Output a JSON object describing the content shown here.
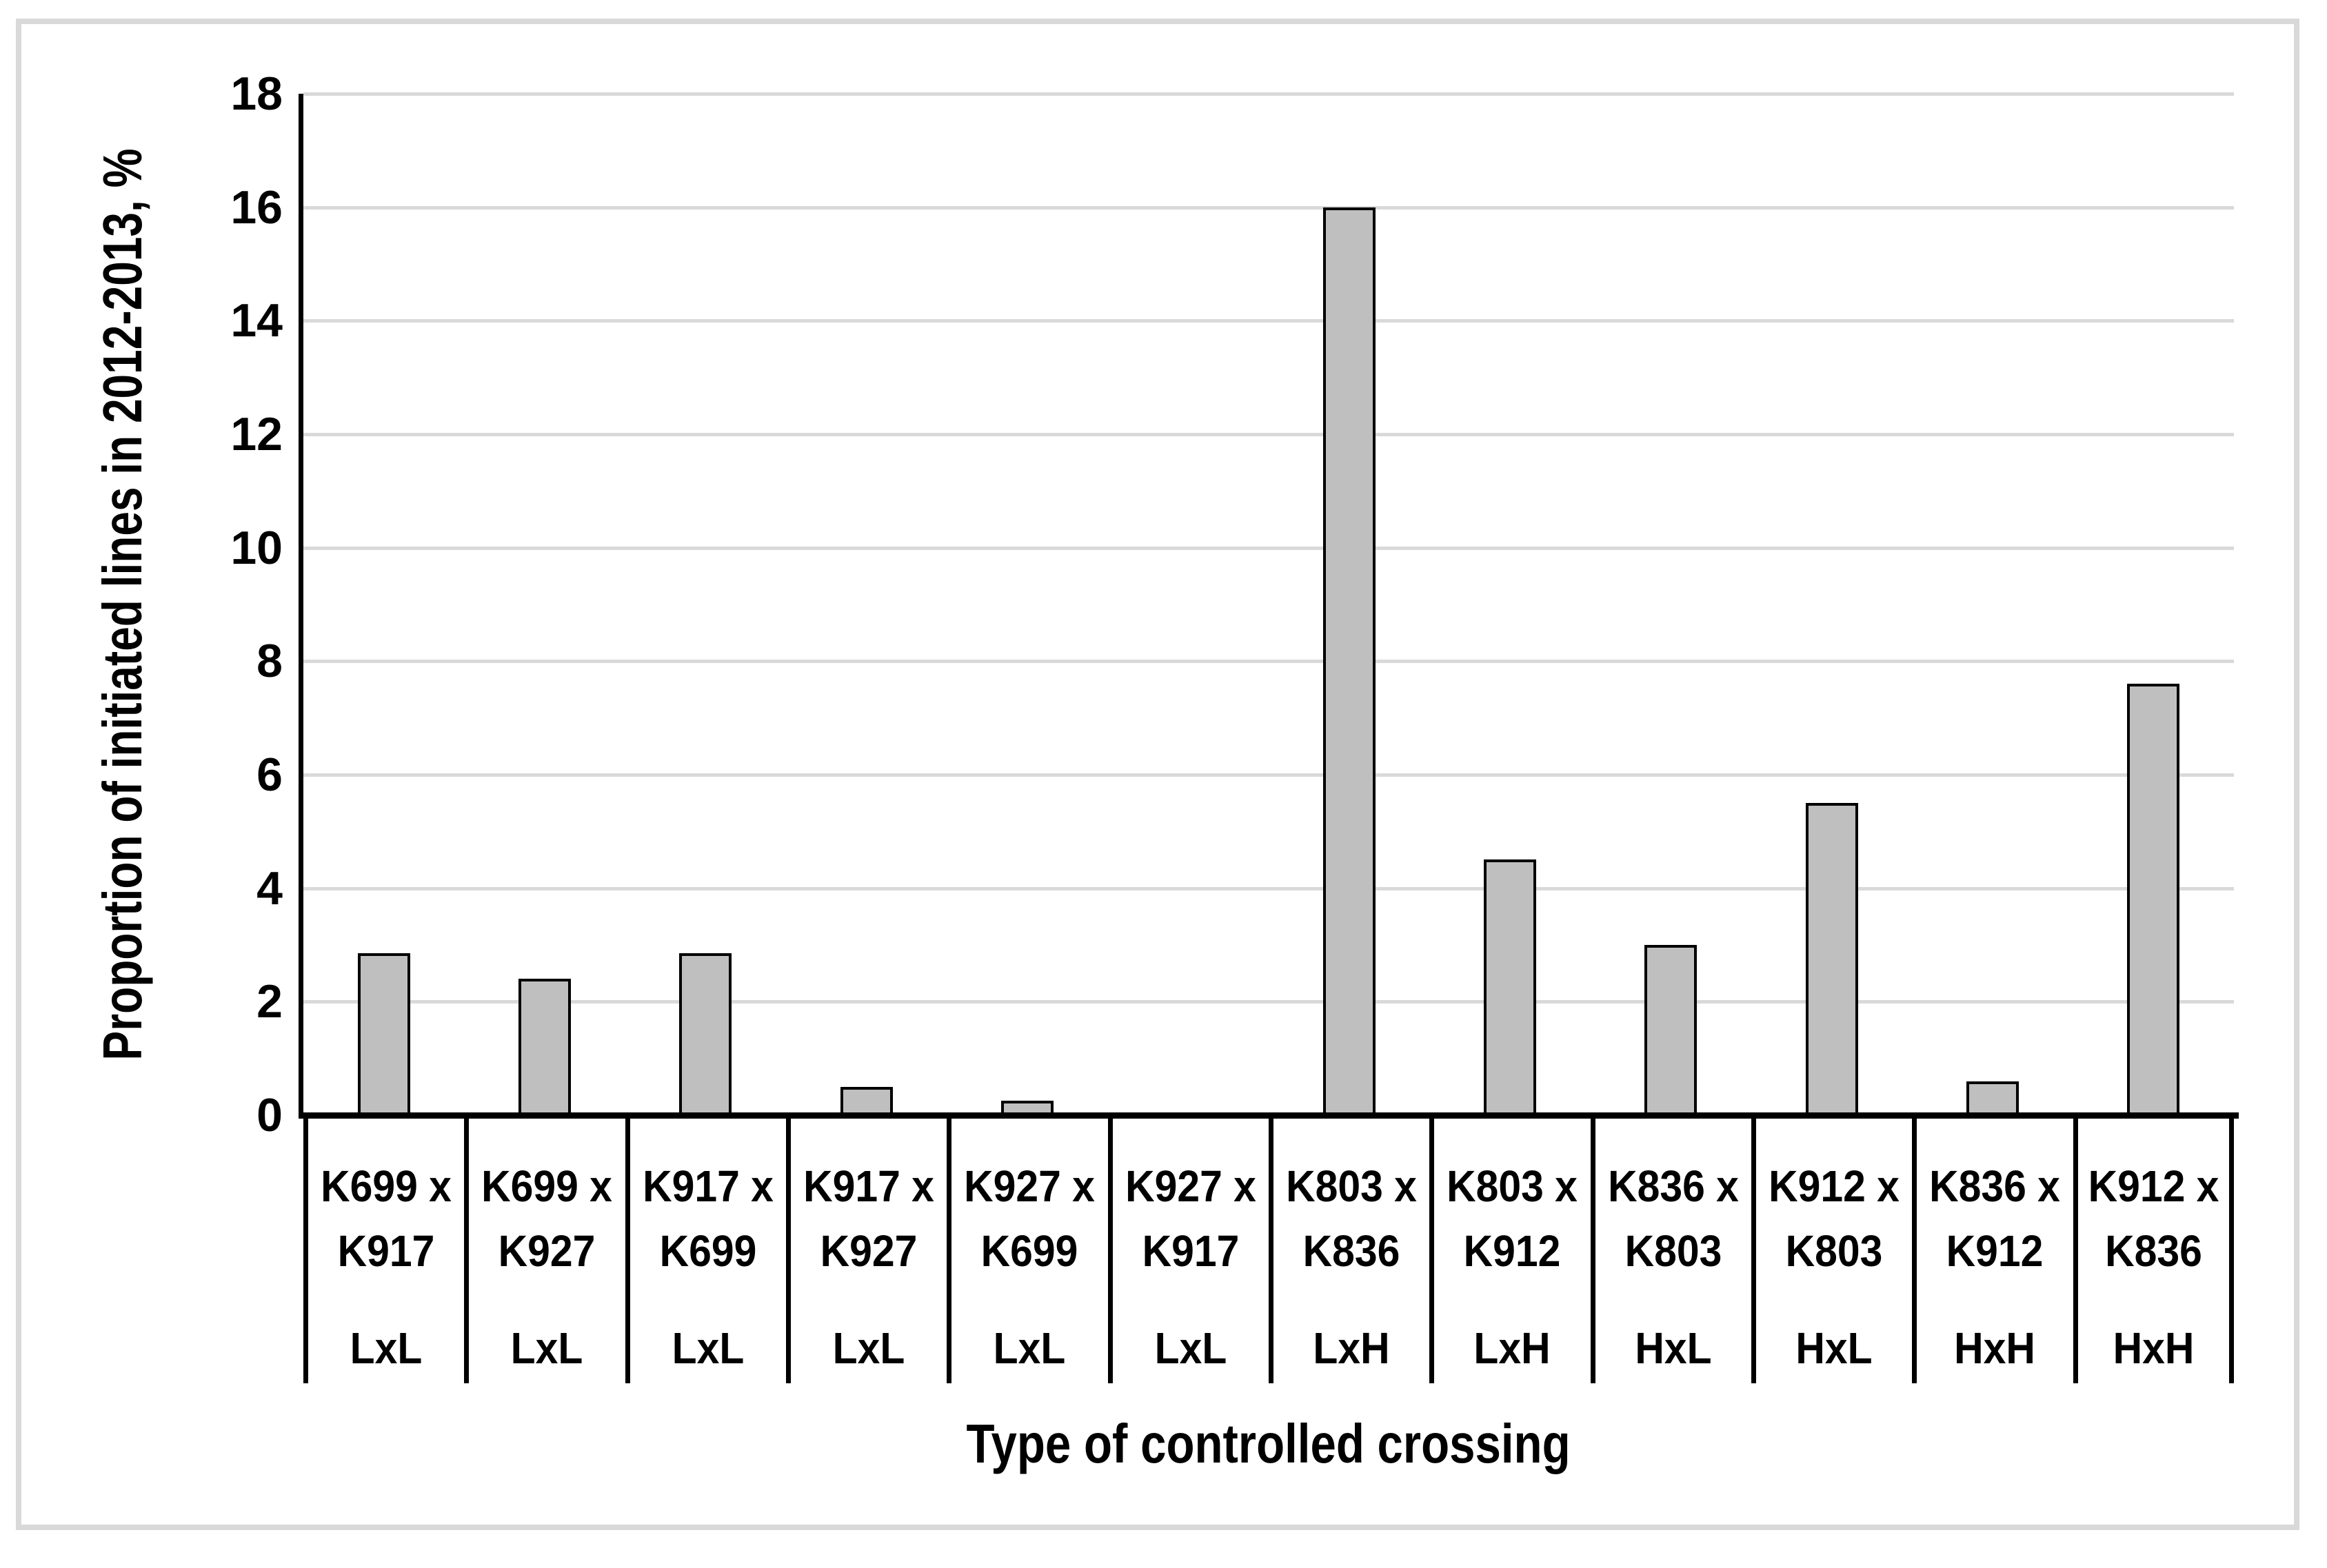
{
  "chart_data": {
    "type": "bar",
    "title": "",
    "xlabel": "Type of controlled crossing",
    "ylabel": "Proportion of initiated lines in 2012-2013, %",
    "ylim": [
      0,
      18
    ],
    "ytick_step": 2,
    "yticks": [
      0,
      2,
      4,
      6,
      8,
      10,
      12,
      14,
      16,
      18
    ],
    "grid": true,
    "legend": "none",
    "bar_fill_color": "#bfbfbf",
    "bar_border_color": "#000000",
    "gridline_color": "#d9d9d9",
    "frame_color": "#d9d9d9",
    "categories": [
      {
        "cross_line1": "K699 x",
        "cross_line2": "K917",
        "cross": "K699 x K917",
        "crossing_type": "LxL"
      },
      {
        "cross_line1": "K699 x",
        "cross_line2": "K927",
        "cross": "K699 x K927",
        "crossing_type": "LxL"
      },
      {
        "cross_line1": "K917 x",
        "cross_line2": "K699",
        "cross": "K917 x K699",
        "crossing_type": "LxL"
      },
      {
        "cross_line1": "K917 x",
        "cross_line2": "K927",
        "cross": "K917 x K927",
        "crossing_type": "LxL"
      },
      {
        "cross_line1": "K927 x",
        "cross_line2": "K699",
        "cross": "K927 x K699",
        "crossing_type": "LxL"
      },
      {
        "cross_line1": "K927 x",
        "cross_line2": "K917",
        "cross": "K927 x K917",
        "crossing_type": "LxL"
      },
      {
        "cross_line1": "K803 x",
        "cross_line2": "K836",
        "cross": "K803 x K836",
        "crossing_type": "LxH"
      },
      {
        "cross_line1": "K803 x",
        "cross_line2": "K912",
        "cross": "K803 x K912",
        "crossing_type": "LxH"
      },
      {
        "cross_line1": "K836 x",
        "cross_line2": "K803",
        "cross": "K836 x K803",
        "crossing_type": "HxL"
      },
      {
        "cross_line1": "K912 x",
        "cross_line2": "K803",
        "cross": "K912 x K803",
        "crossing_type": "HxL"
      },
      {
        "cross_line1": "K836 x",
        "cross_line2": "K912",
        "cross": "K836 x K912",
        "crossing_type": "HxH"
      },
      {
        "cross_line1": "K912 x",
        "cross_line2": "K836",
        "cross": "K912 x K836",
        "crossing_type": "HxH"
      }
    ],
    "values": [
      2.85,
      2.4,
      2.85,
      0.5,
      0.25,
      0,
      16,
      4.5,
      3,
      5.5,
      0.6,
      7.6
    ]
  }
}
